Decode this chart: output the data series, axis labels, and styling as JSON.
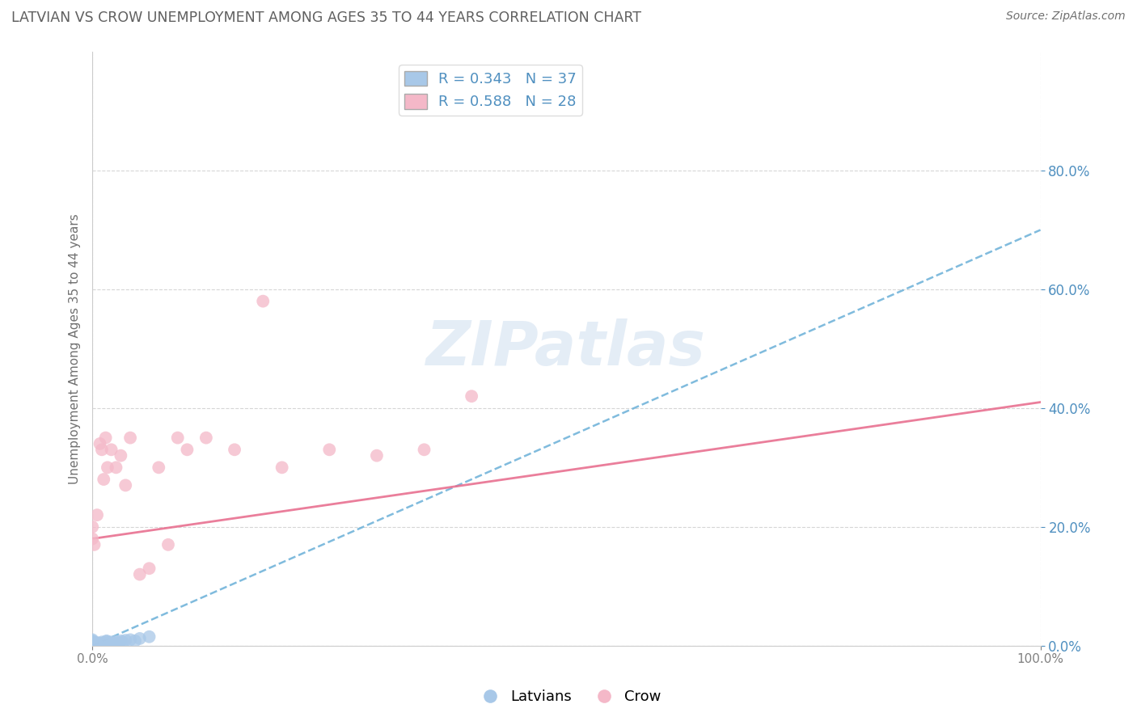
{
  "title": "LATVIAN VS CROW UNEMPLOYMENT AMONG AGES 35 TO 44 YEARS CORRELATION CHART",
  "source": "Source: ZipAtlas.com",
  "ylabel": "Unemployment Among Ages 35 to 44 years",
  "xlim": [
    0,
    1.0
  ],
  "ylim": [
    0,
    1.0
  ],
  "ytick_values": [
    0.0,
    0.2,
    0.4,
    0.6,
    0.8
  ],
  "xtick_values": [
    0.0,
    1.0
  ],
  "latvian_R": 0.343,
  "latvian_N": 37,
  "crow_R": 0.588,
  "crow_N": 28,
  "latvian_color": "#a8c8e8",
  "crow_color": "#f4b8c8",
  "latvian_line_color": "#6ab0d8",
  "crow_line_color": "#e87090",
  "background_color": "#ffffff",
  "grid_color": "#cccccc",
  "title_color": "#606060",
  "tick_label_color": "#5090c0",
  "latvian_x": [
    0.0,
    0.0,
    0.0,
    0.0,
    0.0,
    0.0,
    0.0,
    0.0,
    0.0,
    0.0,
    0.0,
    0.005,
    0.005,
    0.005,
    0.007,
    0.008,
    0.008,
    0.01,
    0.01,
    0.013,
    0.014,
    0.015,
    0.015,
    0.016,
    0.018,
    0.02,
    0.02,
    0.022,
    0.025,
    0.028,
    0.03,
    0.032,
    0.035,
    0.04,
    0.045,
    0.05,
    0.06
  ],
  "latvian_y": [
    0.0,
    0.0,
    0.001,
    0.002,
    0.003,
    0.004,
    0.005,
    0.006,
    0.007,
    0.008,
    0.01,
    0.0,
    0.002,
    0.005,
    0.003,
    0.0,
    0.004,
    0.001,
    0.006,
    0.004,
    0.002,
    0.007,
    0.008,
    0.005,
    0.003,
    0.0,
    0.006,
    0.004,
    0.007,
    0.005,
    0.008,
    0.006,
    0.009,
    0.01,
    0.008,
    0.012,
    0.015
  ],
  "crow_x": [
    0.0,
    0.0,
    0.002,
    0.005,
    0.008,
    0.01,
    0.012,
    0.014,
    0.016,
    0.02,
    0.025,
    0.03,
    0.035,
    0.04,
    0.05,
    0.06,
    0.07,
    0.08,
    0.09,
    0.1,
    0.12,
    0.15,
    0.18,
    0.2,
    0.25,
    0.3,
    0.35,
    0.4
  ],
  "crow_y": [
    0.18,
    0.2,
    0.17,
    0.22,
    0.34,
    0.33,
    0.28,
    0.35,
    0.3,
    0.33,
    0.3,
    0.32,
    0.27,
    0.35,
    0.12,
    0.13,
    0.3,
    0.17,
    0.35,
    0.33,
    0.35,
    0.33,
    0.58,
    0.3,
    0.33,
    0.32,
    0.33,
    0.42
  ],
  "latvian_slope": 0.7,
  "latvian_intercept": 0.0,
  "crow_slope": 0.23,
  "crow_intercept": 0.18,
  "watermark_text": "ZIPatlas",
  "marker_size": 130
}
